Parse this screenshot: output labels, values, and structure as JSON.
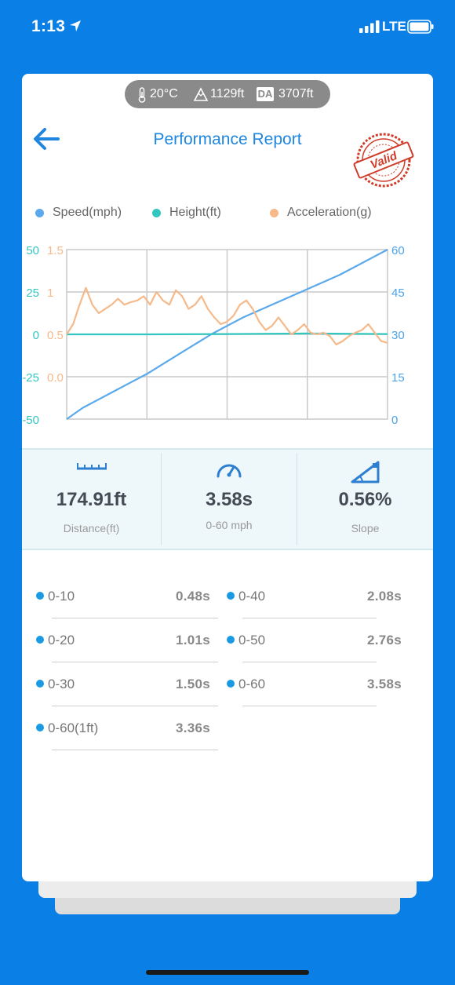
{
  "status_bar": {
    "time": "1:13",
    "network": "LTE"
  },
  "env": {
    "temperature": "20°C",
    "altitude": "1129ft",
    "da_label": "DA",
    "density_altitude": "3707ft"
  },
  "header": {
    "title": "Performance Report",
    "stamp_text": "Valid"
  },
  "legend": [
    {
      "label": "Speed(mph)",
      "color": "#5aa9ec"
    },
    {
      "label": "Height(ft)",
      "color": "#33c6bf"
    },
    {
      "label": "Acceleration(g)",
      "color": "#f5b98a"
    }
  ],
  "chart_data": {
    "type": "line",
    "grid": true,
    "series": [
      {
        "name": "Speed(mph)",
        "axis": "right",
        "color": "#5aa9ec",
        "x": [
          0,
          0.05,
          0.1,
          0.15,
          0.2,
          0.25,
          0.3,
          0.35,
          0.4,
          0.45,
          0.5,
          0.55,
          0.6,
          0.65,
          0.7,
          0.75,
          0.8,
          0.85,
          0.9,
          0.95,
          1.0
        ],
        "y": [
          0,
          4,
          7,
          10,
          13,
          16,
          19.5,
          23,
          26.5,
          30,
          33,
          36,
          38.5,
          41,
          43.5,
          46,
          48.5,
          51,
          54,
          57,
          60
        ]
      },
      {
        "name": "Height(ft)",
        "axis": "left_height",
        "color": "#33c6bf",
        "x": [
          0,
          0.25,
          0.5,
          0.75,
          1.0
        ],
        "y": [
          0,
          0,
          0.2,
          0.5,
          0.2
        ]
      },
      {
        "name": "Acceleration(g)",
        "axis": "left_accel",
        "color": "#f5b98a",
        "x": [
          0,
          0.02,
          0.04,
          0.06,
          0.08,
          0.1,
          0.12,
          0.14,
          0.16,
          0.18,
          0.2,
          0.22,
          0.24,
          0.26,
          0.28,
          0.3,
          0.32,
          0.34,
          0.36,
          0.38,
          0.4,
          0.42,
          0.44,
          0.46,
          0.48,
          0.5,
          0.52,
          0.54,
          0.56,
          0.58,
          0.6,
          0.62,
          0.64,
          0.66,
          0.68,
          0.7,
          0.72,
          0.74,
          0.76,
          0.78,
          0.8,
          0.82,
          0.84,
          0.86,
          0.88,
          0.9,
          0.92,
          0.94,
          0.96,
          0.98,
          1.0
        ],
        "y": [
          0.5,
          0.62,
          0.85,
          1.05,
          0.85,
          0.75,
          0.8,
          0.85,
          0.92,
          0.85,
          0.88,
          0.9,
          0.95,
          0.85,
          1.0,
          0.9,
          0.85,
          1.02,
          0.95,
          0.8,
          0.85,
          0.95,
          0.8,
          0.7,
          0.62,
          0.65,
          0.72,
          0.85,
          0.9,
          0.8,
          0.65,
          0.55,
          0.6,
          0.7,
          0.6,
          0.5,
          0.55,
          0.62,
          0.52,
          0.5,
          0.52,
          0.48,
          0.38,
          0.42,
          0.48,
          0.52,
          0.55,
          0.62,
          0.52,
          0.42,
          0.4
        ]
      }
    ],
    "left_height_ticks": [
      "50",
      "25",
      "0",
      "-25",
      "-50"
    ],
    "left_height_range": [
      -50,
      50
    ],
    "left_accel_ticks": [
      "1.5",
      "1",
      "0.5",
      "0.0"
    ],
    "left_accel_range": [
      -0.5,
      1.5
    ],
    "right_speed_ticks": [
      "60",
      "45",
      "30",
      "15",
      "0"
    ],
    "right_speed_range": [
      0,
      60
    ]
  },
  "stats": [
    {
      "value": "174.91ft",
      "caption": "Distance(ft)",
      "icon": "ruler-icon"
    },
    {
      "value": "3.58s",
      "caption": "0-60 mph",
      "icon": "speedometer-icon"
    },
    {
      "value": "0.56%",
      "caption": "Slope",
      "icon": "slope-icon"
    }
  ],
  "splits": [
    {
      "label": "0-10",
      "time": "0.48s"
    },
    {
      "label": "0-40",
      "time": "2.08s"
    },
    {
      "label": "0-20",
      "time": "1.01s"
    },
    {
      "label": "0-50",
      "time": "2.76s"
    },
    {
      "label": "0-30",
      "time": "1.50s"
    },
    {
      "label": "0-60",
      "time": "3.58s"
    },
    {
      "label": "0-60(1ft)",
      "time": "3.36s"
    }
  ]
}
